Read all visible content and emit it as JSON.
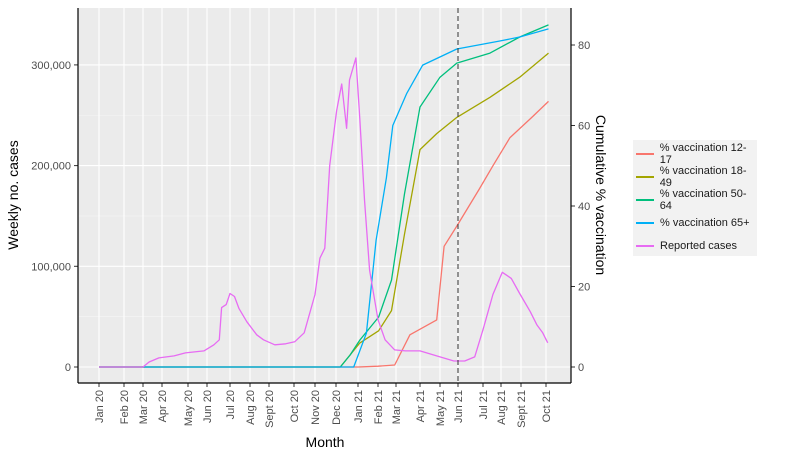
{
  "chart_data": {
    "type": "line",
    "xlabel": "Month",
    "ylabel_left": "Weekly no. cases",
    "ylabel_right": "Cumulative % vaccination",
    "ylim_left": [
      0,
      350000
    ],
    "ylim_right": [
      0,
      87
    ],
    "yticks_left": [
      {
        "v": 0,
        "label": "0"
      },
      {
        "v": 100000,
        "label": "100,000"
      },
      {
        "v": 200000,
        "label": "200,000"
      },
      {
        "v": 300000,
        "label": "300,000"
      }
    ],
    "yticks_right": [
      {
        "v": 0,
        "label": "0"
      },
      {
        "v": 20,
        "label": "20"
      },
      {
        "v": 40,
        "label": "40"
      },
      {
        "v": 60,
        "label": "60"
      },
      {
        "v": 80,
        "label": "80"
      }
    ],
    "xticks": [
      {
        "d": "2020-01-01",
        "label": "Jan 20"
      },
      {
        "d": "2020-02-01",
        "label": "Feb 20"
      },
      {
        "d": "2020-03-01",
        "label": "Mar 20"
      },
      {
        "d": "2020-04-01",
        "label": "Apr 20"
      },
      {
        "d": "2020-05-01",
        "label": "May 20"
      },
      {
        "d": "2020-06-01",
        "label": "Jun 20"
      },
      {
        "d": "2020-07-01",
        "label": "Jul 20"
      },
      {
        "d": "2020-08-01",
        "label": "Aug 20"
      },
      {
        "d": "2020-09-01",
        "label": "Sept 20"
      },
      {
        "d": "2020-10-01",
        "label": "Oct 20"
      },
      {
        "d": "2020-11-01",
        "label": "Nov 20"
      },
      {
        "d": "2020-12-01",
        "label": "Dec 20"
      },
      {
        "d": "2021-01-01",
        "label": "Jan 21"
      },
      {
        "d": "2021-02-01",
        "label": "Feb 21"
      },
      {
        "d": "2021-03-01",
        "label": "Mar 21"
      },
      {
        "d": "2021-04-01",
        "label": "Apr 21"
      },
      {
        "d": "2021-05-01",
        "label": "May 21"
      },
      {
        "d": "2021-06-01",
        "label": "Jun 21"
      },
      {
        "d": "2021-07-01",
        "label": "Jul 21"
      },
      {
        "d": "2021-08-01",
        "label": "Aug 21"
      },
      {
        "d": "2021-09-01",
        "label": "Sept 21"
      },
      {
        "d": "2021-10-01",
        "label": "Oct 21"
      }
    ],
    "reference_line": {
      "x": "2021-06-01",
      "style": "dashed"
    },
    "grid": true,
    "legend_position": "right",
    "series": [
      {
        "name": "% vaccination 12-17",
        "axis": "right",
        "color": "#F8766D",
        "points": [
          [
            "2020-01-01",
            0
          ],
          [
            "2021-01-01",
            0
          ],
          [
            "2021-02-01",
            0.2
          ],
          [
            "2021-02-27",
            0.5
          ],
          [
            "2021-03-19",
            8
          ],
          [
            "2021-04-26",
            11.7
          ],
          [
            "2021-05-08",
            30
          ],
          [
            "2021-05-30",
            35
          ],
          [
            "2021-06-26",
            44
          ],
          [
            "2021-07-18",
            50
          ],
          [
            "2021-08-15",
            57
          ],
          [
            "2021-09-14",
            62
          ],
          [
            "2021-10-04",
            66
          ]
        ]
      },
      {
        "name": "% vaccination 18-49",
        "axis": "right",
        "color": "#A3A500",
        "points": [
          [
            "2020-01-01",
            0
          ],
          [
            "2020-12-07",
            0
          ],
          [
            "2021-01-04",
            6
          ],
          [
            "2021-02-02",
            9
          ],
          [
            "2021-02-22",
            14
          ],
          [
            "2021-03-12",
            33
          ],
          [
            "2021-04-01",
            54
          ],
          [
            "2021-04-26",
            58
          ],
          [
            "2021-05-30",
            62
          ],
          [
            "2021-07-13",
            67
          ],
          [
            "2021-08-30",
            72
          ],
          [
            "2021-10-04",
            78
          ]
        ]
      },
      {
        "name": "% vaccination 50-64",
        "axis": "right",
        "color": "#00BF7D",
        "points": [
          [
            "2020-01-01",
            0
          ],
          [
            "2020-12-07",
            0
          ],
          [
            "2020-12-21",
            3
          ],
          [
            "2021-01-04",
            6.7
          ],
          [
            "2021-02-02",
            12.4
          ],
          [
            "2021-02-22",
            21.6
          ],
          [
            "2021-03-12",
            43
          ],
          [
            "2021-04-01",
            64.6
          ],
          [
            "2021-05-01",
            72
          ],
          [
            "2021-05-30",
            75.5
          ],
          [
            "2021-07-13",
            78
          ],
          [
            "2021-08-30",
            82
          ],
          [
            "2021-10-04",
            85
          ]
        ]
      },
      {
        "name": "% vaccination 65+",
        "axis": "right",
        "color": "#00B0F6",
        "points": [
          [
            "2020-01-01",
            0
          ],
          [
            "2020-12-26",
            0
          ],
          [
            "2021-01-14",
            8.4
          ],
          [
            "2021-01-29",
            31.5
          ],
          [
            "2021-02-14",
            47
          ],
          [
            "2021-02-24",
            60
          ],
          [
            "2021-03-15",
            68
          ],
          [
            "2021-04-05",
            75
          ],
          [
            "2021-05-30",
            79
          ],
          [
            "2021-07-30",
            81
          ],
          [
            "2021-08-30",
            82
          ],
          [
            "2021-10-04",
            84
          ]
        ]
      },
      {
        "name": "Reported cases",
        "axis": "left",
        "color": "#E76BF3",
        "points": [
          [
            "2020-01-01",
            0
          ],
          [
            "2020-03-01",
            0
          ],
          [
            "2020-03-11",
            5000
          ],
          [
            "2020-03-27",
            9000
          ],
          [
            "2020-04-15",
            11000
          ],
          [
            "2020-04-28",
            14000
          ],
          [
            "2020-05-27",
            16000
          ],
          [
            "2020-06-10",
            22000
          ],
          [
            "2020-06-17",
            27000
          ],
          [
            "2020-06-20",
            59000
          ],
          [
            "2020-06-26",
            62000
          ],
          [
            "2020-07-01",
            73000
          ],
          [
            "2020-07-08",
            70000
          ],
          [
            "2020-07-15",
            58000
          ],
          [
            "2020-07-27",
            45000
          ],
          [
            "2020-08-12",
            32000
          ],
          [
            "2020-08-23",
            27000
          ],
          [
            "2020-09-08",
            22000
          ],
          [
            "2020-09-21",
            23000
          ],
          [
            "2020-10-02",
            25000
          ],
          [
            "2020-10-16",
            34000
          ],
          [
            "2020-11-01",
            72000
          ],
          [
            "2020-11-08",
            108000
          ],
          [
            "2020-11-15",
            118000
          ],
          [
            "2020-11-22",
            200000
          ],
          [
            "2020-12-02",
            255000
          ],
          [
            "2020-12-09",
            281000
          ],
          [
            "2020-12-16",
            237000
          ],
          [
            "2020-12-20",
            285000
          ],
          [
            "2020-12-29",
            307000
          ],
          [
            "2021-01-04",
            245000
          ],
          [
            "2021-01-11",
            166000
          ],
          [
            "2021-01-19",
            96000
          ],
          [
            "2021-02-01",
            47000
          ],
          [
            "2021-02-12",
            27000
          ],
          [
            "2021-02-27",
            17000
          ],
          [
            "2021-03-13",
            16000
          ],
          [
            "2021-04-01",
            16000
          ],
          [
            "2021-05-01",
            10000
          ],
          [
            "2021-05-25",
            6000
          ],
          [
            "2021-06-09",
            6000
          ],
          [
            "2021-06-21",
            10000
          ],
          [
            "2021-07-01",
            37000
          ],
          [
            "2021-07-18",
            72000
          ],
          [
            "2021-08-03",
            94000
          ],
          [
            "2021-08-17",
            88000
          ],
          [
            "2021-08-29",
            74000
          ],
          [
            "2021-09-12",
            55000
          ],
          [
            "2021-09-20",
            42000
          ],
          [
            "2021-09-27",
            34000
          ],
          [
            "2021-10-03",
            24000
          ]
        ]
      }
    ]
  }
}
